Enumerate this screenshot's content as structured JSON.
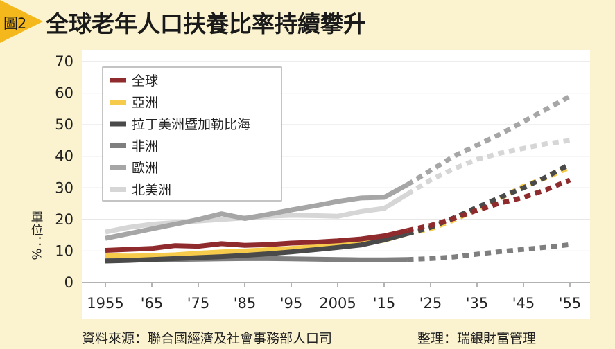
{
  "header": {
    "figure_label": "圖2",
    "title": "全球老年人口扶養比率持續攀升"
  },
  "footer": {
    "source": "資料來源：聯合國經濟及社會事務部人口司",
    "editor": "整理：瑞銀財富管理"
  },
  "colors": {
    "background": "#fbf3cf",
    "plot_background": "#ffffff",
    "badge": "#f4b81c"
  },
  "chart_data": {
    "type": "line",
    "title": "全球老年人口扶養比率持續攀升",
    "ylabel": "單位：%",
    "xlabel": "",
    "xlim": [
      1955,
      2055
    ],
    "ylim": [
      0,
      70
    ],
    "yticks": [
      0,
      10,
      20,
      30,
      40,
      50,
      60,
      70
    ],
    "x_tick_values": [
      1955,
      1965,
      1975,
      1985,
      1995,
      2005,
      2015,
      2025,
      2035,
      2045,
      2055
    ],
    "x_tick_labels": [
      "1955",
      "'65",
      "'75",
      "'85",
      "'95",
      "2005",
      "'15",
      "'25",
      "'35",
      "'45",
      "'55"
    ],
    "grid": "horizontal",
    "legend_position": "top-left",
    "projection_start": 2020,
    "projection_style": "dotted",
    "series": [
      {
        "name": "全球",
        "color": "#8f2a2d",
        "x": [
          1955,
          1960,
          1965,
          1970,
          1975,
          1980,
          1985,
          1990,
          1995,
          2000,
          2005,
          2010,
          2015,
          2020,
          2025,
          2030,
          2035,
          2040,
          2045,
          2050,
          2055
        ],
        "y": [
          10.2,
          10.5,
          10.8,
          11.7,
          11.5,
          12.3,
          11.8,
          12.0,
          12.5,
          12.8,
          13.2,
          13.8,
          14.8,
          16.5,
          18.1,
          20.3,
          22.9,
          25.2,
          27.0,
          29.5,
          32.5
        ]
      },
      {
        "name": "亞洲",
        "color": "#f6cb4c",
        "x": [
          1955,
          1960,
          1965,
          1970,
          1975,
          1980,
          1985,
          1990,
          1995,
          2000,
          2005,
          2010,
          2015,
          2020,
          2025,
          2030,
          2035,
          2040,
          2045,
          2050,
          2055
        ],
        "y": [
          8.5,
          8.4,
          8.5,
          8.8,
          9.3,
          9.7,
          10.0,
          10.4,
          10.8,
          11.3,
          11.8,
          12.4,
          13.4,
          15.5,
          17.0,
          19.8,
          23.2,
          26.8,
          30.5,
          33.3,
          36.5
        ]
      },
      {
        "name": "拉丁美洲暨加勒比海",
        "color": "#4a4a4a",
        "x": [
          1955,
          1960,
          1965,
          1970,
          1975,
          1980,
          1985,
          1990,
          1995,
          2000,
          2005,
          2010,
          2015,
          2020,
          2025,
          2030,
          2035,
          2040,
          2045,
          2050,
          2055
        ],
        "y": [
          6.8,
          7.0,
          7.3,
          7.6,
          7.9,
          8.2,
          8.6,
          9.1,
          9.7,
          10.4,
          11.1,
          11.9,
          13.5,
          15.5,
          17.5,
          20.5,
          23.8,
          27.0,
          30.0,
          33.5,
          37.5
        ]
      },
      {
        "name": "非洲",
        "color": "#7f7f7f",
        "x": [
          1955,
          1960,
          1965,
          1970,
          1975,
          1980,
          1985,
          1990,
          1995,
          2000,
          2005,
          2010,
          2015,
          2020,
          2025,
          2030,
          2035,
          2040,
          2045,
          2050,
          2055
        ],
        "y": [
          6.9,
          7.1,
          7.3,
          7.3,
          7.4,
          7.5,
          7.6,
          7.6,
          7.5,
          7.4,
          7.3,
          7.2,
          7.2,
          7.3,
          7.6,
          8.1,
          9.0,
          9.8,
          10.5,
          11.2,
          12.0
        ]
      },
      {
        "name": "歐洲",
        "color": "#a6a6a6",
        "x": [
          1955,
          1960,
          1965,
          1970,
          1975,
          1980,
          1985,
          1990,
          1995,
          2000,
          2005,
          2010,
          2015,
          2020,
          2025,
          2030,
          2035,
          2040,
          2045,
          2050,
          2055
        ],
        "y": [
          14.0,
          15.5,
          17.0,
          18.5,
          20.0,
          21.8,
          20.3,
          21.6,
          23.0,
          24.3,
          25.7,
          26.8,
          27.0,
          31.0,
          35.5,
          40.0,
          43.5,
          47.0,
          51.0,
          55.0,
          59.0
        ]
      },
      {
        "name": "北美洲",
        "color": "#d6d6d6",
        "x": [
          1955,
          1960,
          1965,
          1970,
          1975,
          1980,
          1985,
          1990,
          1995,
          2000,
          2005,
          2010,
          2015,
          2020,
          2025,
          2030,
          2035,
          2040,
          2045,
          2050,
          2055
        ],
        "y": [
          16.0,
          17.5,
          18.5,
          19.0,
          19.5,
          20.0,
          20.5,
          21.0,
          21.3,
          21.2,
          21.0,
          22.5,
          23.5,
          28.0,
          32.5,
          36.0,
          39.0,
          41.0,
          42.5,
          44.0,
          45.0
        ]
      }
    ]
  }
}
